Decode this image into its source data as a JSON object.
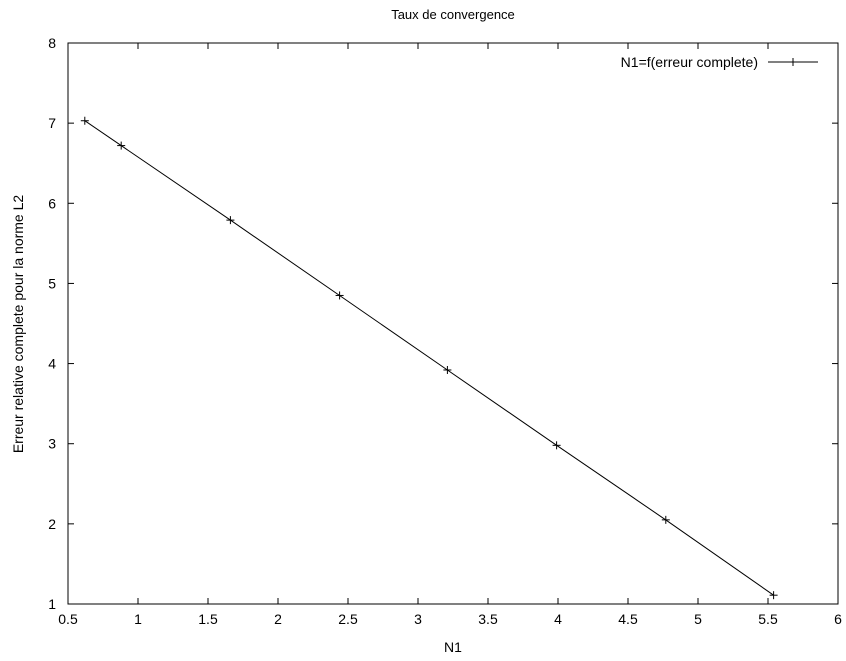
{
  "chart_data": {
    "type": "line",
    "title": "Taux de convergence",
    "xlabel": "N1",
    "ylabel": "Erreur relative complete pour la norme L2",
    "xlim": [
      0.5,
      6
    ],
    "ylim": [
      1,
      8
    ],
    "x_ticks": [
      0.5,
      1,
      1.5,
      2,
      2.5,
      3,
      3.5,
      4,
      4.5,
      5,
      5.5,
      6
    ],
    "x_tick_labels": [
      "0.5",
      "1",
      "1.5",
      "2",
      "2.5",
      "3",
      "3.5",
      "4",
      "4.5",
      "5",
      "5.5",
      "6"
    ],
    "y_ticks": [
      1,
      2,
      3,
      4,
      5,
      6,
      7,
      8
    ],
    "y_tick_labels": [
      "1",
      "2",
      "3",
      "4",
      "5",
      "6",
      "7",
      "8"
    ],
    "grid": false,
    "legend_position": "top-right",
    "series": [
      {
        "name": "N1=f(erreur complete)",
        "marker": "plus",
        "color": "#000000",
        "x": [
          0.62,
          0.88,
          1.66,
          2.44,
          3.21,
          3.99,
          4.77,
          5.54
        ],
        "y": [
          7.03,
          6.72,
          5.79,
          4.85,
          3.92,
          2.98,
          2.05,
          1.11
        ]
      }
    ]
  }
}
